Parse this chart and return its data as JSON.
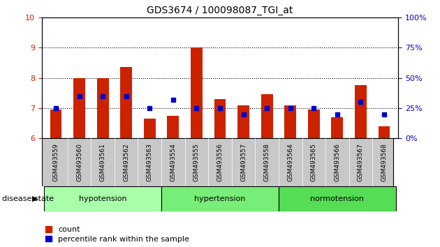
{
  "title": "GDS3674 / 100098087_TGI_at",
  "samples": [
    "GSM493559",
    "GSM493560",
    "GSM493561",
    "GSM493562",
    "GSM493563",
    "GSM493554",
    "GSM493555",
    "GSM493556",
    "GSM493557",
    "GSM493558",
    "GSM493564",
    "GSM493565",
    "GSM493566",
    "GSM493567",
    "GSM493568"
  ],
  "red_values": [
    6.95,
    8.0,
    7.98,
    8.35,
    6.65,
    6.75,
    9.0,
    7.3,
    7.1,
    7.45,
    7.1,
    6.95,
    6.7,
    7.75,
    6.4
  ],
  "blue_values": [
    25,
    35,
    35,
    35,
    25,
    32,
    25,
    25,
    20,
    25,
    25,
    25,
    20,
    30,
    20
  ],
  "ylim_left": [
    6,
    10
  ],
  "ylim_right": [
    0,
    100
  ],
  "yticks_left": [
    6,
    7,
    8,
    9,
    10
  ],
  "yticks_right": [
    0,
    25,
    50,
    75,
    100
  ],
  "groups": [
    {
      "label": "hypotension",
      "start": 0,
      "end": 5
    },
    {
      "label": "hypertension",
      "start": 5,
      "end": 10
    },
    {
      "label": "normotension",
      "start": 10,
      "end": 15
    }
  ],
  "group_colors": [
    "#AAFFAA",
    "#77EE77",
    "#55DD55"
  ],
  "bar_color": "#CC2200",
  "dot_color": "#0000CC",
  "bar_width": 0.5,
  "tick_area_color": "#C8C8C8",
  "disease_state_label": "disease state",
  "legend_count": "count",
  "legend_percentile": "percentile rank within the sample",
  "left_tick_color": "#CC2200",
  "right_tick_color": "#0000CC"
}
